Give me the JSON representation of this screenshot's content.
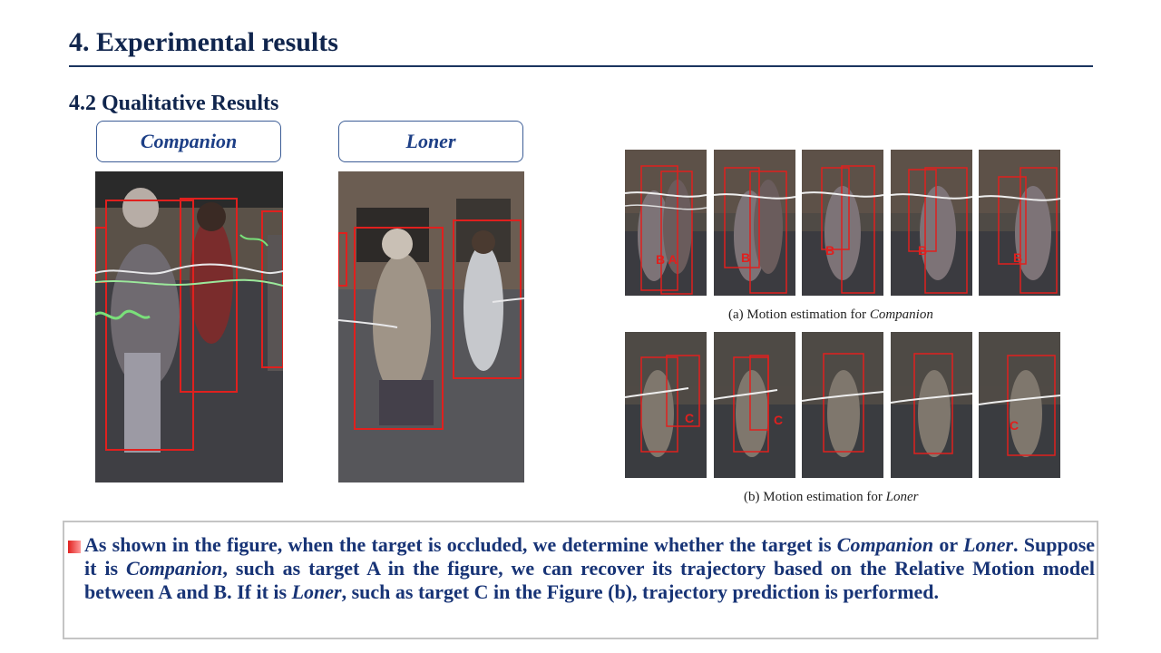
{
  "header": {
    "title": "4. Experimental results",
    "subtitle": "4.2 Qualitative Results"
  },
  "tags": {
    "companion": "Companion",
    "loner": "Loner"
  },
  "figure": {
    "caption_a_prefix": "(a) Motion estimation for",
    "caption_a_italic": "Companion",
    "caption_b_prefix": "(b) Motion estimation for",
    "caption_b_italic": "Loner",
    "row_a_labels": [
      "B A",
      "B",
      "B",
      "B",
      "B"
    ],
    "row_b_labels": [
      "C",
      "C",
      "",
      "",
      "C"
    ]
  },
  "paragraph": {
    "s1": "As shown in the figure, when the target is occluded, we determine whether the target is",
    "i1": "Companion",
    "s2": "or",
    "i2": "Loner",
    "s3": ". Suppose it is",
    "i3": "Companion",
    "s4": ", such as target A in the figure, we can recover its trajectory based on the Relative Motion model between A and B. If it is",
    "i4": "Loner",
    "s5": ", such as target C in the Figure (b), trajectory prediction is performed."
  },
  "colors": {
    "title": "#10254d",
    "accent": "#1d3f86",
    "box_red": "#e0201e"
  }
}
